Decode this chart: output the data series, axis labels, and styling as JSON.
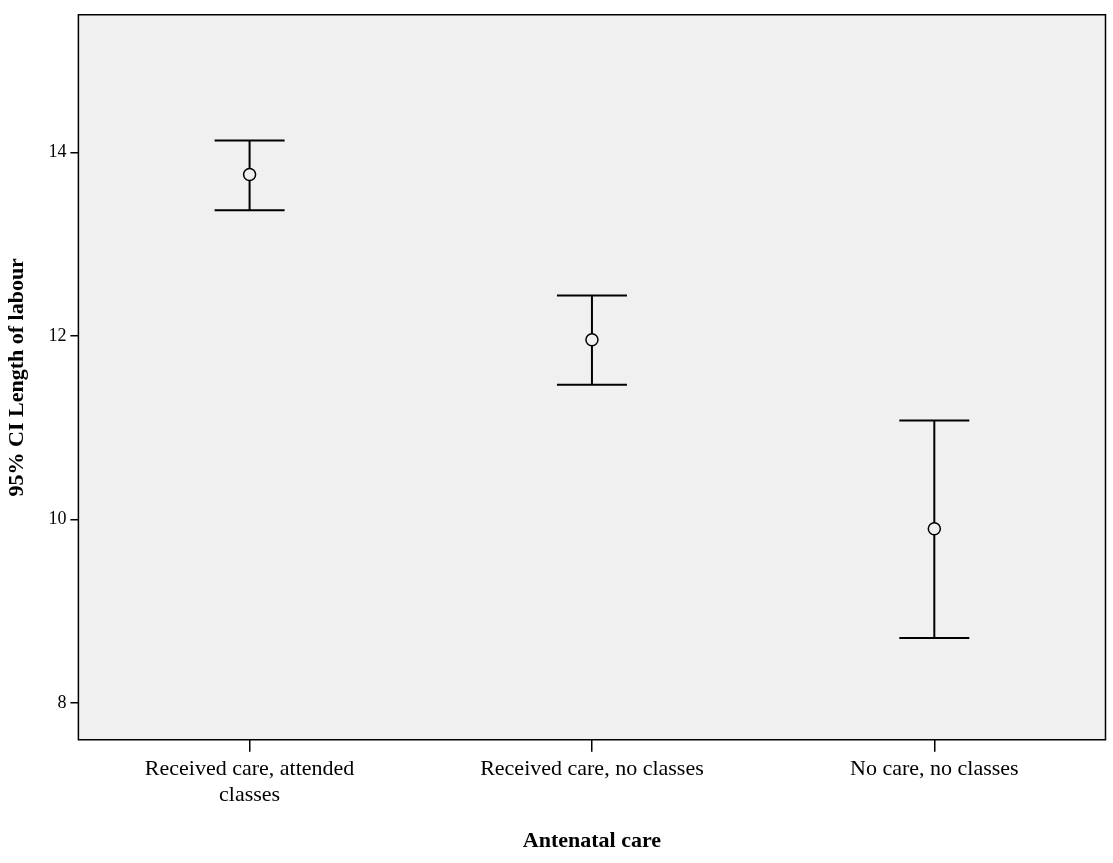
{
  "chart_data": {
    "type": "scatter",
    "xlabel": "Antenatal care",
    "ylabel": "95% CI Length of labour",
    "categories": [
      "Received care, attended classes",
      "Received care, no classes",
      "No care, no classes"
    ],
    "values": [
      13.76,
      11.96,
      9.9
    ],
    "errors": [
      [
        13.37,
        14.13
      ],
      [
        11.47,
        12.44
      ],
      [
        8.71,
        11.08
      ]
    ],
    "color": "#000000",
    "marker": "circle",
    "ylim": [
      7.6,
      15.5
    ],
    "yticks": [
      8,
      10,
      12,
      14
    ],
    "grid": false,
    "legend": false
  }
}
